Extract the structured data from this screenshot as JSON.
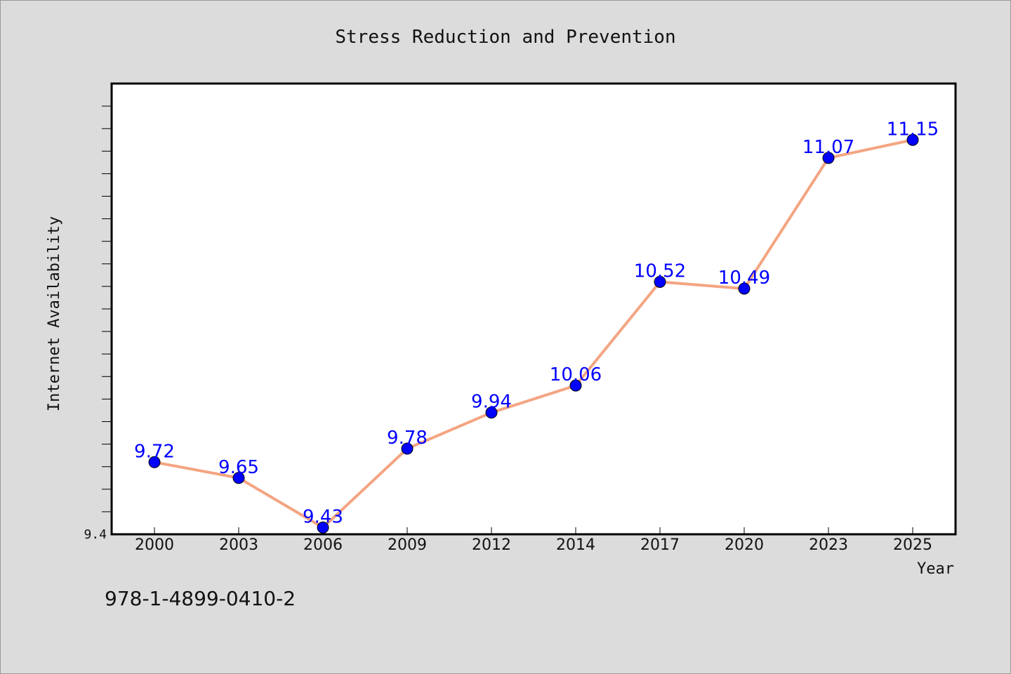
{
  "chart_data": {
    "type": "line",
    "title": "Stress Reduction and Prevention",
    "xlabel": "Year",
    "ylabel": "Internet Availability",
    "categories": [
      "2000",
      "2003",
      "2006",
      "2009",
      "2012",
      "2014",
      "2017",
      "2020",
      "2023",
      "2025"
    ],
    "series": [
      {
        "values": [
          9.72,
          9.65,
          9.43,
          9.78,
          9.94,
          10.06,
          10.52,
          10.49,
          11.07,
          11.15
        ],
        "labels": [
          "9.72",
          "9.65",
          "9.43",
          "9.78",
          "9.94",
          "10.06",
          "10.52",
          "10.49",
          "11.07",
          "11.15"
        ]
      }
    ],
    "ylim": [
      9.4,
      11.4
    ],
    "ytick_labels": [
      "9.4"
    ],
    "grid": false,
    "line_color": "#f4a582",
    "marker_color": "#0000ff",
    "label_color": "#0000ff"
  },
  "footer": {
    "code": "978-1-4899-0410-2"
  }
}
